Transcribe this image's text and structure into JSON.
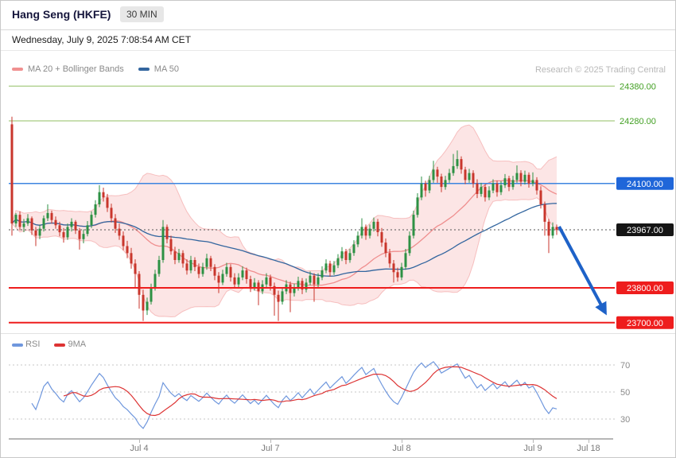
{
  "header": {
    "title": "Hang Seng (HKFE)",
    "timeframe": "30 MIN"
  },
  "datetime": "Wednesday, July 9, 2025 7:08:54 AM CET",
  "attribution": "Research © 2025 Trading Central",
  "legend_main": [
    {
      "label": "MA 20 + Bollinger Bands",
      "color": "#f09090"
    },
    {
      "label": "MA 50",
      "color": "#33669f"
    }
  ],
  "legend_rsi": [
    {
      "label": "RSI",
      "color": "#6f97dd"
    },
    {
      "label": "9MA",
      "color": "#dd3333"
    }
  ],
  "colors": {
    "up": "#2d9144",
    "down": "#c9362c",
    "band_fill": "rgba(246,170,170,0.30)",
    "band_edge": "rgba(240,150,150,0.55)",
    "ma20": "#ef8e8e",
    "ma50": "#33669f",
    "level_green": "#43a024",
    "level_green_line": "#92bf63",
    "level_blue": "#1f66d9",
    "level_blue_line": "#3d85e0",
    "last_badge": "#151515",
    "last_line": "#555555",
    "level_red": "#ee1d1d",
    "arrow": "#1e62c8",
    "rsi": "#6f97dd",
    "rsi_ma": "#dd3333",
    "rsi_grid": "#c4c4c4",
    "rsi_tick_text": "#8a8a8a"
  },
  "chart_data": {
    "type": "candlestick+indicator",
    "instrument": "Hang Seng (HKFE)",
    "interval": "30 MIN",
    "last_price": 23967,
    "price_range_shown": [
      23700,
      24380
    ],
    "levels": [
      {
        "price": 24380,
        "label": "24380.00",
        "role": "resistance",
        "style": "green-line-label"
      },
      {
        "price": 24280,
        "label": "24280.00",
        "role": "resistance",
        "style": "green-line-label"
      },
      {
        "price": 24100,
        "label": "24100.00",
        "role": "pivot",
        "style": "blue-line-badge"
      },
      {
        "price": 23967,
        "label": "23967.00",
        "role": "last-price",
        "style": "black-badge-dotted"
      },
      {
        "price": 23800,
        "label": "23800.00",
        "role": "support",
        "style": "red-line-badge"
      },
      {
        "price": 23700,
        "label": "23700.00",
        "role": "support-target",
        "style": "red-line-badge"
      }
    ],
    "arrow": {
      "direction": "down",
      "target": 23700
    },
    "x_ticks": [
      {
        "label": "Jul 4",
        "index": 32
      },
      {
        "label": "Jul 7",
        "index": 65
      },
      {
        "label": "Jul 8",
        "index": 98
      },
      {
        "label": "Jul 9",
        "index": 131
      },
      {
        "label": "Jul 18",
        "index": 145
      }
    ],
    "rsi_ticks": [
      70,
      50,
      30
    ],
    "indicator_params": {
      "ma_fast": 20,
      "ma_slow": 50,
      "boll_mult": 2,
      "rsi_period": 14,
      "rsi_ma": 9
    },
    "candles": [
      [
        24270,
        24292,
        23950,
        23985
      ],
      [
        23985,
        24015,
        23975,
        24010
      ],
      [
        24010,
        24020,
        23965,
        23975
      ],
      [
        23975,
        23998,
        23960,
        23985
      ],
      [
        23985,
        24012,
        23978,
        24000
      ],
      [
        24000,
        24005,
        23952,
        23965
      ],
      [
        23965,
        23975,
        23920,
        23950
      ],
      [
        23950,
        23982,
        23940,
        23970
      ],
      [
        23970,
        24008,
        23962,
        24000
      ],
      [
        24000,
        24040,
        23992,
        24015
      ],
      [
        24015,
        24022,
        23985,
        23995
      ],
      [
        23995,
        24005,
        23970,
        23980
      ],
      [
        23980,
        23990,
        23948,
        23960
      ],
      [
        23960,
        23972,
        23930,
        23945
      ],
      [
        23945,
        23985,
        23938,
        23975
      ],
      [
        23975,
        24000,
        23962,
        23990
      ],
      [
        23990,
        23995,
        23955,
        23965
      ],
      [
        23965,
        23972,
        23910,
        23940
      ],
      [
        23940,
        23968,
        23928,
        23955
      ],
      [
        23955,
        23992,
        23948,
        23980
      ],
      [
        23980,
        24020,
        23972,
        24010
      ],
      [
        24010,
        24052,
        24002,
        24040
      ],
      [
        24040,
        24095,
        24032,
        24075
      ],
      [
        24075,
        24088,
        24048,
        24060
      ],
      [
        24060,
        24070,
        24018,
        24030
      ],
      [
        24030,
        24042,
        23988,
        24000
      ],
      [
        24000,
        24012,
        23958,
        23970
      ],
      [
        23970,
        23985,
        23938,
        23950
      ],
      [
        23950,
        23962,
        23908,
        23920
      ],
      [
        23920,
        23935,
        23885,
        23900
      ],
      [
        23900,
        23915,
        23855,
        23870
      ],
      [
        23870,
        23882,
        23800,
        23840
      ],
      [
        23840,
        23848,
        23740,
        23780
      ],
      [
        23780,
        23795,
        23705,
        23735
      ],
      [
        23735,
        23772,
        23722,
        23760
      ],
      [
        23760,
        23812,
        23752,
        23800
      ],
      [
        23800,
        23852,
        23792,
        23840
      ],
      [
        23840,
        23892,
        23832,
        23880
      ],
      [
        23880,
        23995,
        23872,
        23975
      ],
      [
        23975,
        23982,
        23928,
        23940
      ],
      [
        23940,
        23950,
        23895,
        23905
      ],
      [
        23905,
        23918,
        23868,
        23880
      ],
      [
        23880,
        23912,
        23872,
        23900
      ],
      [
        23900,
        23908,
        23858,
        23870
      ],
      [
        23870,
        23882,
        23838,
        23850
      ],
      [
        23850,
        23892,
        23842,
        23880
      ],
      [
        23880,
        23888,
        23848,
        23860
      ],
      [
        23860,
        23870,
        23828,
        23840
      ],
      [
        23840,
        23872,
        23832,
        23860
      ],
      [
        23860,
        23898,
        23852,
        23885
      ],
      [
        23885,
        23892,
        23848,
        23860
      ],
      [
        23860,
        23868,
        23822,
        23835
      ],
      [
        23835,
        23845,
        23785,
        23815
      ],
      [
        23815,
        23852,
        23808,
        23840
      ],
      [
        23840,
        23872,
        23832,
        23860
      ],
      [
        23860,
        23868,
        23818,
        23830
      ],
      [
        23830,
        23842,
        23798,
        23810
      ],
      [
        23810,
        23842,
        23802,
        23830
      ],
      [
        23830,
        23862,
        23822,
        23850
      ],
      [
        23850,
        23858,
        23812,
        23825
      ],
      [
        23825,
        23835,
        23788,
        23800
      ],
      [
        23800,
        23828,
        23792,
        23815
      ],
      [
        23815,
        23822,
        23750,
        23790
      ],
      [
        23790,
        23822,
        23782,
        23810
      ],
      [
        23810,
        23842,
        23802,
        23830
      ],
      [
        23830,
        23838,
        23792,
        23805
      ],
      [
        23805,
        23815,
        23720,
        23780
      ],
      [
        23780,
        23792,
        23705,
        23760
      ],
      [
        23760,
        23802,
        23752,
        23790
      ],
      [
        23790,
        23822,
        23782,
        23810
      ],
      [
        23810,
        23818,
        23730,
        23785
      ],
      [
        23785,
        23812,
        23775,
        23800
      ],
      [
        23800,
        23832,
        23792,
        23820
      ],
      [
        23820,
        23828,
        23782,
        23795
      ],
      [
        23795,
        23827,
        23787,
        23815
      ],
      [
        23815,
        23847,
        23807,
        23835
      ],
      [
        23835,
        23842,
        23760,
        23810
      ],
      [
        23810,
        23842,
        23802,
        23830
      ],
      [
        23830,
        23862,
        23822,
        23850
      ],
      [
        23850,
        23882,
        23842,
        23870
      ],
      [
        23870,
        23878,
        23832,
        23845
      ],
      [
        23845,
        23877,
        23837,
        23865
      ],
      [
        23865,
        23897,
        23857,
        23885
      ],
      [
        23885,
        23917,
        23877,
        23905
      ],
      [
        23905,
        23912,
        23868,
        23880
      ],
      [
        23880,
        23912,
        23872,
        23900
      ],
      [
        23900,
        23937,
        23892,
        23925
      ],
      [
        23925,
        23962,
        23917,
        23950
      ],
      [
        23950,
        24000,
        23942,
        23975
      ],
      [
        23975,
        23982,
        23938,
        23950
      ],
      [
        23950,
        23982,
        23942,
        23970
      ],
      [
        23970,
        24002,
        23962,
        23990
      ],
      [
        23990,
        23998,
        23948,
        23960
      ],
      [
        23960,
        23972,
        23918,
        23930
      ],
      [
        23930,
        23942,
        23888,
        23900
      ],
      [
        23900,
        23912,
        23858,
        23870
      ],
      [
        23870,
        23880,
        23815,
        23845
      ],
      [
        23845,
        23858,
        23818,
        23830
      ],
      [
        23830,
        23872,
        23822,
        23860
      ],
      [
        23860,
        23912,
        23852,
        23900
      ],
      [
        23900,
        23962,
        23892,
        23950
      ],
      [
        23950,
        24022,
        23942,
        24010
      ],
      [
        24010,
        24072,
        24002,
        24060
      ],
      [
        24060,
        24120,
        24052,
        24100
      ],
      [
        24100,
        24108,
        24062,
        24080
      ],
      [
        24080,
        24122,
        24072,
        24110
      ],
      [
        24110,
        24165,
        24102,
        24140
      ],
      [
        24140,
        24148,
        24102,
        24120
      ],
      [
        24120,
        24128,
        24075,
        24090
      ],
      [
        24090,
        24122,
        24082,
        24110
      ],
      [
        24110,
        24142,
        24102,
        24130
      ],
      [
        24130,
        24185,
        24122,
        24150
      ],
      [
        24150,
        24195,
        24142,
        24170
      ],
      [
        24170,
        24178,
        24128,
        24140
      ],
      [
        24140,
        24148,
        24098,
        24110
      ],
      [
        24110,
        24142,
        24102,
        24130
      ],
      [
        24130,
        24138,
        24088,
        24100
      ],
      [
        24100,
        24112,
        24058,
        24070
      ],
      [
        24070,
        24102,
        24062,
        24090
      ],
      [
        24090,
        24098,
        24048,
        24060
      ],
      [
        24060,
        24092,
        24052,
        24080
      ],
      [
        24080,
        24112,
        24072,
        24100
      ],
      [
        24100,
        24108,
        24062,
        24075
      ],
      [
        24075,
        24107,
        24067,
        24095
      ],
      [
        24095,
        24127,
        24087,
        24115
      ],
      [
        24115,
        24122,
        24078,
        24090
      ],
      [
        24090,
        24122,
        24082,
        24110
      ],
      [
        24110,
        24152,
        24102,
        24130
      ],
      [
        24130,
        24138,
        24092,
        24105
      ],
      [
        24105,
        24137,
        24097,
        24125
      ],
      [
        24125,
        24132,
        24088,
        24100
      ],
      [
        24100,
        24132,
        24092,
        24110
      ],
      [
        24110,
        24118,
        24068,
        24080
      ],
      [
        24080,
        24092,
        24028,
        24040
      ],
      [
        24040,
        24048,
        23950,
        23990
      ],
      [
        23990,
        23998,
        23900,
        23950
      ],
      [
        23950,
        23988,
        23942,
        23975
      ],
      [
        23975,
        23982,
        23952,
        23967
      ]
    ]
  }
}
